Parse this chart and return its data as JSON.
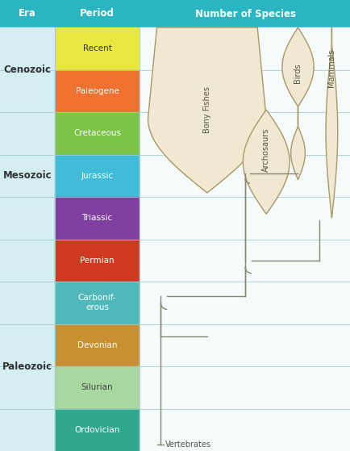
{
  "fig_width": 4.35,
  "fig_height": 5.59,
  "dpi": 100,
  "header_bg": "#2bb5c0",
  "header_text_color": "#ffffff",
  "header_era": "Era",
  "header_period": "Period",
  "header_species": "Number of Species",
  "era_bg": "#d4eef2",
  "species_col_bg": "#f5fafa",
  "eras": [
    {
      "name": "Cenozoic",
      "r0": 0,
      "r1": 1
    },
    {
      "name": "Mesozoic",
      "r0": 2,
      "r1": 4
    },
    {
      "name": "Paleozoic",
      "r0": 6,
      "r1": 9
    }
  ],
  "periods": [
    {
      "name": "Recent",
      "color": "#e8e840",
      "text_color": "#333333",
      "row": 0
    },
    {
      "name": "Paleogene",
      "color": "#f07030",
      "text_color": "#ffffff",
      "row": 1
    },
    {
      "name": "Cretaceous",
      "color": "#7cc348",
      "text_color": "#ffffff",
      "row": 2
    },
    {
      "name": "Jurassic",
      "color": "#40bcd8",
      "text_color": "#ffffff",
      "row": 3
    },
    {
      "name": "Triassic",
      "color": "#8040a0",
      "text_color": "#ffffff",
      "row": 4
    },
    {
      "name": "Permian",
      "color": "#d03820",
      "text_color": "#ffffff",
      "row": 5
    },
    {
      "name": "Carbonif-\nerous",
      "color": "#50b8b8",
      "text_color": "#ffffff",
      "row": 6
    },
    {
      "name": "Devonian",
      "color": "#c89030",
      "text_color": "#ffffff",
      "row": 7
    },
    {
      "name": "Silurian",
      "color": "#a8d8a0",
      "text_color": "#444444",
      "row": 8
    },
    {
      "name": "Ordovician",
      "color": "#30a890",
      "text_color": "#ffffff",
      "row": 9
    }
  ],
  "n_rows": 10,
  "spindle_fill": "#f0e8d0",
  "spindle_stroke": "#a89868",
  "clade_line_color": "#888870",
  "grid_line_color": "#a0ccd0",
  "vertebrates_label": "Vertebrates",
  "vert_label_fontsize": 7.0,
  "group_label_fontsize": 7.0
}
